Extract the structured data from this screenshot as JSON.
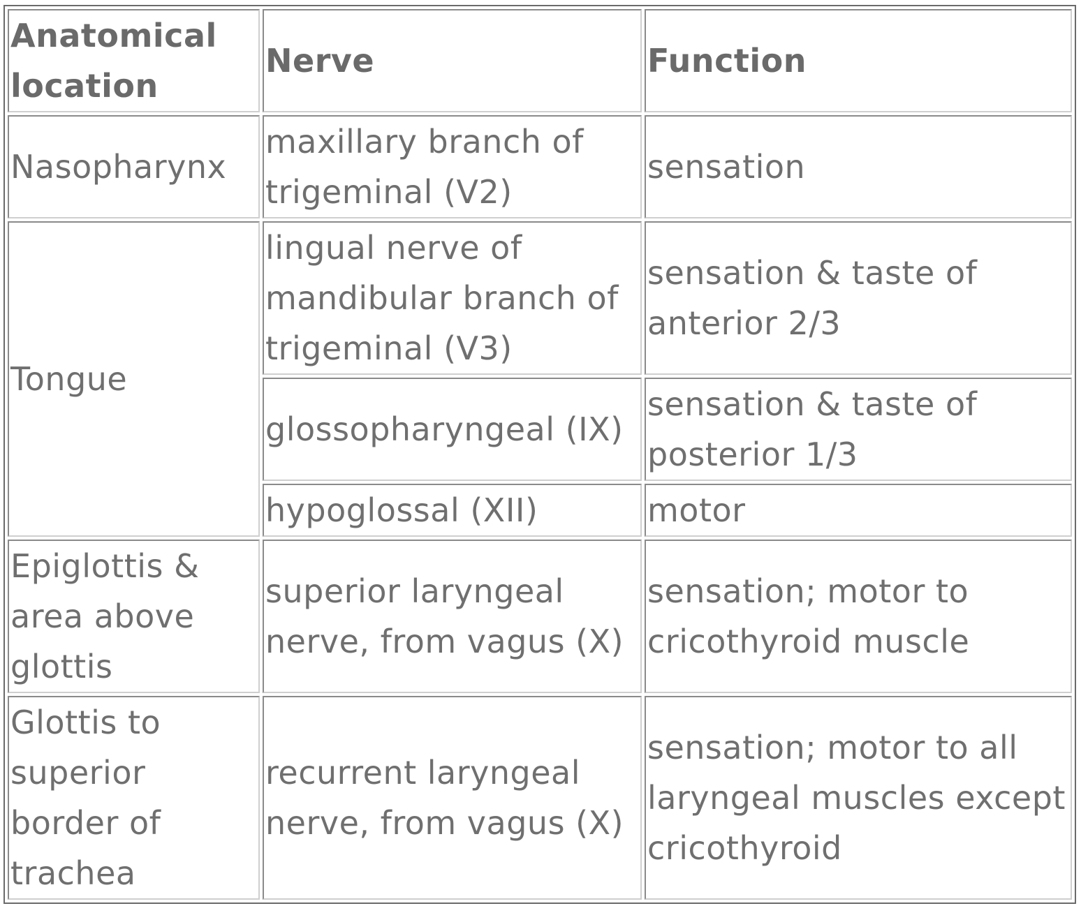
{
  "table": {
    "headers": {
      "location": "Anatomical location",
      "nerve": "Nerve",
      "function": "Function"
    },
    "rows": [
      {
        "location": "Nasopharynx",
        "nerve": "maxillary branch of trigeminal (V2)",
        "function": "sensation"
      },
      {
        "location": "Tongue",
        "nerve": "lingual nerve of mandibular branch of trigeminal (V3)",
        "function": "sensation & taste of anterior 2/3"
      },
      {
        "nerve": "glossopharyngeal (IX)",
        "function": "sensation & taste of posterior 1/3"
      },
      {
        "nerve": "hypoglossal (XII)",
        "function": "motor"
      },
      {
        "location": "Epiglottis & area above glottis",
        "nerve": "superior laryngeal nerve, from vagus (X)",
        "function": "sensation; motor to cricothyroid muscle"
      },
      {
        "location": "Glottis to superior border of trachea",
        "nerve": "recurrent laryngeal nerve, from vagus (X)",
        "function": "sensation; motor to all laryngeal muscles except cricothyroid"
      }
    ]
  }
}
